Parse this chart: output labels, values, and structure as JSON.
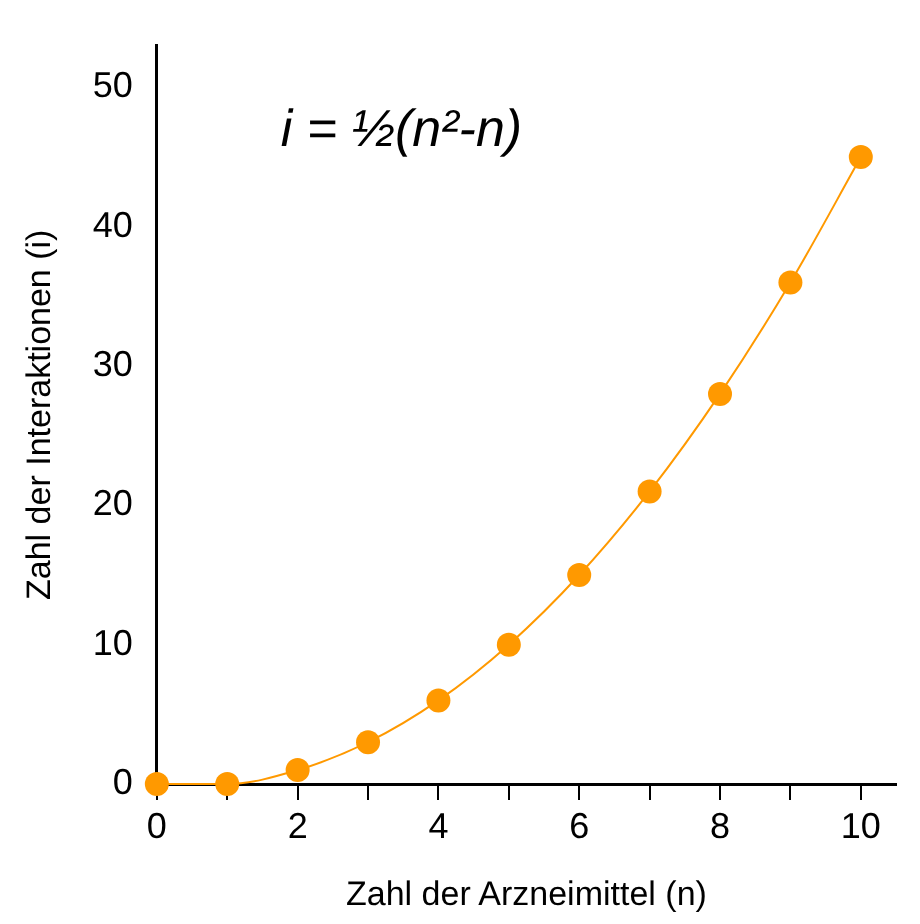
{
  "chart_data": {
    "type": "line",
    "xlabel": "Zahl der Arzneimittel (n)",
    "ylabel": "Zahl der Interaktionen (i)",
    "annotations": [
      "i = ½(n²-n)"
    ],
    "x": [
      0,
      1,
      2,
      3,
      4,
      5,
      6,
      7,
      8,
      9,
      10
    ],
    "series": [
      {
        "color": "#ff9900",
        "values": [
          0,
          0,
          1,
          3,
          6,
          10,
          15,
          21,
          28,
          36,
          45
        ]
      }
    ],
    "xlim": [
      0,
      10.5
    ],
    "xticks": [
      0,
      {
        "value": 1,
        "label": null
      },
      2,
      {
        "value": 3,
        "label": null
      },
      4,
      {
        "value": 5,
        "label": null
      },
      6,
      {
        "value": 7,
        "label": null
      },
      8,
      {
        "value": 9,
        "label": null
      },
      10
    ],
    "ylim": [
      0,
      53
    ],
    "yticks": [
      0,
      10,
      20,
      30,
      40,
      50
    ],
    "grid": false,
    "legend": false,
    "marker": "circle",
    "line_style": "solid"
  }
}
